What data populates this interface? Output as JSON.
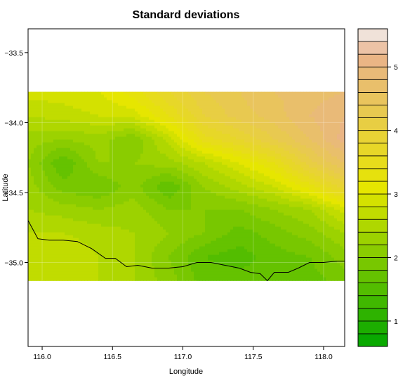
{
  "chart_data": {
    "type": "heatmap",
    "title": "Standard deviations",
    "xlabel": "Longitude",
    "ylabel": "Latitude",
    "xlim": [
      115.9,
      118.15
    ],
    "ylim": [
      -35.6,
      -33.33
    ],
    "data_extent": {
      "lon": [
        115.9,
        118.15
      ],
      "lat": [
        -35.13,
        -33.78
      ]
    },
    "x_ticks": [
      {
        "value": 116.0,
        "label": "116.0"
      },
      {
        "value": 116.5,
        "label": "116.5"
      },
      {
        "value": 117.0,
        "label": "117.0"
      },
      {
        "value": 117.5,
        "label": "117.5"
      },
      {
        "value": 118.0,
        "label": "118.0"
      }
    ],
    "y_ticks": [
      {
        "value": -33.5,
        "label": "−33.5"
      },
      {
        "value": -34.0,
        "label": "−34.0"
      },
      {
        "value": -34.5,
        "label": "−34.5"
      },
      {
        "value": -35.0,
        "label": "−35.0"
      }
    ],
    "grid": true,
    "lons": [
      115.9,
      116.15,
      116.4,
      116.65,
      116.9,
      117.15,
      117.4,
      117.65,
      117.9,
      118.15
    ],
    "lats": [
      -33.78,
      -33.95,
      -34.12,
      -34.29,
      -34.46,
      -34.62,
      -34.79,
      -34.96,
      -35.13
    ],
    "values": [
      [
        2.9,
        2.9,
        3.0,
        3.3,
        3.8,
        4.2,
        4.4,
        4.6,
        4.7,
        4.8
      ],
      [
        2.6,
        2.7,
        2.8,
        2.9,
        3.4,
        4.0,
        4.3,
        4.5,
        4.8,
        5.0
      ],
      [
        2.3,
        2.2,
        2.3,
        2.0,
        2.7,
        3.5,
        3.8,
        4.2,
        4.6,
        5.1
      ],
      [
        2.2,
        1.6,
        2.2,
        2.2,
        2.3,
        2.6,
        3.0,
        3.4,
        4.1,
        4.6
      ],
      [
        2.3,
        1.9,
        1.8,
        2.1,
        1.6,
        2.2,
        2.5,
        2.8,
        3.3,
        3.9
      ],
      [
        2.4,
        2.3,
        2.2,
        2.3,
        2.0,
        2.0,
        2.0,
        2.2,
        2.4,
        2.9
      ],
      [
        2.6,
        2.6,
        2.5,
        2.4,
        2.2,
        2.0,
        1.7,
        1.9,
        2.1,
        2.4
      ],
      [
        2.7,
        2.8,
        2.6,
        2.4,
        2.0,
        1.6,
        1.5,
        1.7,
        1.8,
        2.1
      ],
      [
        2.8,
        2.8,
        2.6,
        2.4,
        2.1,
        1.7,
        1.7,
        1.6,
        1.7,
        1.9
      ]
    ],
    "coastline": [
      [
        115.9,
        -34.7
      ],
      [
        115.97,
        -34.83
      ],
      [
        116.05,
        -34.84
      ],
      [
        116.15,
        -34.84
      ],
      [
        116.25,
        -34.85
      ],
      [
        116.35,
        -34.9
      ],
      [
        116.45,
        -34.97
      ],
      [
        116.52,
        -34.97
      ],
      [
        116.6,
        -35.03
      ],
      [
        116.68,
        -35.02
      ],
      [
        116.78,
        -35.04
      ],
      [
        116.9,
        -35.04
      ],
      [
        117.0,
        -35.03
      ],
      [
        117.1,
        -35.0
      ],
      [
        117.2,
        -35.0
      ],
      [
        117.3,
        -35.02
      ],
      [
        117.4,
        -35.04
      ],
      [
        117.48,
        -35.07
      ],
      [
        117.55,
        -35.08
      ],
      [
        117.6,
        -35.13
      ],
      [
        117.65,
        -35.07
      ],
      [
        117.75,
        -35.07
      ],
      [
        117.82,
        -35.04
      ],
      [
        117.9,
        -35.0
      ],
      [
        118.0,
        -35.0
      ],
      [
        118.1,
        -34.99
      ],
      [
        118.15,
        -34.99
      ]
    ],
    "colorbar": {
      "min": 0.6,
      "max": 5.6,
      "step": 0.2,
      "ticks": [
        {
          "value": 1,
          "label": "1"
        },
        {
          "value": 2,
          "label": "2"
        },
        {
          "value": 3,
          "label": "3"
        },
        {
          "value": 4,
          "label": "4"
        },
        {
          "value": 5,
          "label": "5"
        }
      ]
    },
    "colors": {
      "low": "#00a600",
      "mid": "#e6e600",
      "high": "#eab38c",
      "top": "#f2f2f2",
      "coastline": "#000000"
    }
  }
}
